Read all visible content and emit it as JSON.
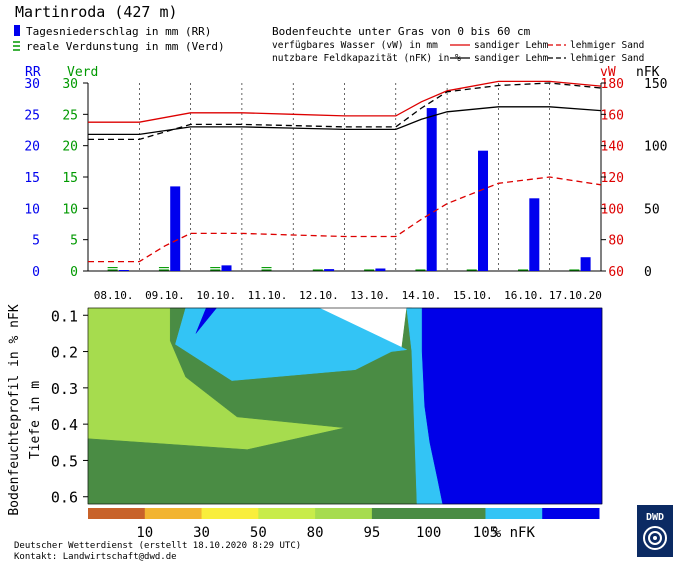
{
  "header": {
    "station": "Martinroda (427 m)",
    "legend_rr": "Tagesniederschlag in mm (RR)",
    "legend_verd": "reale Verdunstung in mm (Verd)",
    "soil_title": "Bodenfeuchte unter Gras von 0 bis 60 cm",
    "vw_label": "verfügbares Wasser (vW) in mm",
    "nfk_label": "nutzbare Feldkapazität (nFK) in %",
    "sandiger_lehm": "sandiger Lehm",
    "lehmiger_sand": "lehmiger Sand"
  },
  "footer": {
    "line1": "Deutscher Wetterdienst (erstellt 18.10.2020 8:29 UTC)",
    "line2": "Kontakt: Landwirtschaft@dwd.de",
    "logo_text": "DWD"
  },
  "colors": {
    "rr": "#0000ee",
    "verd": "#009900",
    "vw": "#dd0000",
    "nfk": "#000000"
  },
  "chart_data": [
    {
      "type": "bar",
      "title": "Tagesniederschlag / reale Verdunstung / Bodenfeuchte",
      "categories": [
        "08.10.",
        "09.10.",
        "10.10.",
        "11.10.",
        "12.10.",
        "13.10.",
        "14.10.",
        "15.10.",
        "16.10.",
        "17.10.20"
      ],
      "axes": {
        "rr": {
          "label": "RR",
          "ticks": [
            0,
            5,
            10,
            15,
            20,
            25,
            30
          ],
          "range": [
            0,
            30
          ]
        },
        "verd": {
          "label": "Verd",
          "ticks": [
            0,
            5,
            10,
            15,
            20,
            25,
            30
          ],
          "range": [
            0,
            30
          ]
        },
        "vw": {
          "label": "vW",
          "ticks": [
            60,
            80,
            100,
            120,
            140,
            160,
            180
          ],
          "range": [
            60,
            180
          ]
        },
        "nfk": {
          "label": "nFK",
          "ticks": [
            0,
            50,
            100,
            150
          ],
          "range": [
            0,
            150
          ]
        }
      },
      "series": [
        {
          "name": "Tagesniederschlag in mm (RR)",
          "kind": "bar",
          "axis": "rr",
          "values": [
            0.1,
            13.5,
            0.9,
            0,
            0.3,
            0.4,
            26,
            19.2,
            11.6,
            2.2
          ]
        },
        {
          "name": "reale Verdunstung in mm (Verd)",
          "kind": "bar-dashed",
          "axis": "verd",
          "values": [
            0.6,
            0.6,
            0.6,
            0.6,
            0.4,
            0.3,
            0.3,
            0.3,
            0.4,
            0.4
          ]
        },
        {
          "name": "vW sandiger Lehm",
          "kind": "line",
          "axis": "vw",
          "dash": "solid",
          "color": "#dd0000",
          "x": [
            0.0,
            1.0,
            2.0,
            3.0,
            4.0,
            5.0,
            6.0,
            6.5,
            7.0,
            8.0,
            9.0,
            10.0
          ],
          "values": [
            155,
            155,
            161,
            161,
            160,
            159,
            159,
            168,
            175,
            181,
            181,
            178
          ]
        },
        {
          "name": "vW lehmiger Sand",
          "kind": "line",
          "axis": "vw",
          "dash": "dashed",
          "color": "#dd0000",
          "x": [
            0.0,
            1.0,
            1.5,
            2.0,
            3.0,
            4.0,
            5.0,
            6.0,
            6.5,
            7.0,
            8.0,
            9.0,
            10.0
          ],
          "values": [
            66,
            66,
            76,
            84,
            84,
            83,
            82,
            82,
            93,
            103,
            116,
            120,
            115
          ]
        },
        {
          "name": "nFK sandiger Lehm",
          "kind": "line",
          "axis": "nfk",
          "dash": "solid",
          "color": "#000000",
          "x": [
            0.0,
            1.0,
            2.0,
            3.0,
            4.0,
            5.0,
            6.0,
            6.5,
            7.0,
            8.0,
            9.0,
            10.0
          ],
          "values": [
            109,
            109,
            115,
            115,
            114,
            113,
            113,
            121,
            127,
            131,
            131,
            128
          ]
        },
        {
          "name": "nFK lehmiger Sand",
          "kind": "line",
          "axis": "nfk",
          "dash": "dashed",
          "color": "#000000",
          "x": [
            0.0,
            1.0,
            2.0,
            3.0,
            4.0,
            5.0,
            6.0,
            6.5,
            7.0,
            8.0,
            9.0,
            10.0
          ],
          "values": [
            105,
            105,
            117,
            117,
            116,
            115,
            115,
            130,
            143,
            148,
            150,
            146
          ]
        }
      ]
    },
    {
      "type": "heatmap",
      "title": "Bodenfeuchteprofil in % nFK",
      "ylabel": "Bodenfeuchteprofil in % nFK",
      "ylabel2": "Tiefe in m",
      "yticks": [
        "0.1",
        "0.2",
        "0.3",
        "0.4",
        "0.5",
        "0.6"
      ],
      "yrange": [
        0.08,
        0.62
      ],
      "xrange": [
        0,
        10
      ],
      "zones": [
        {
          "label": "80-95 % nFK",
          "color": "#a6dc4e",
          "points": [
            [
              0,
              0.08
            ],
            [
              1.6,
              0.08
            ],
            [
              1.6,
              0.17
            ],
            [
              1.9,
              0.27
            ],
            [
              2.9,
              0.38
            ],
            [
              5,
              0.41
            ],
            [
              3.1,
              0.47
            ],
            [
              0,
              0.44
            ]
          ]
        },
        {
          "label": "95-100 % nFK",
          "color": "#4a8c44",
          "points": [
            [
              1.6,
              0.08
            ],
            [
              1.9,
              0.08
            ],
            [
              1.7,
              0.18
            ],
            [
              2.8,
              0.28
            ],
            [
              5.2,
              0.25
            ],
            [
              5.9,
              0.2
            ],
            [
              6.1,
              0.195
            ],
            [
              6.2,
              0.08
            ],
            [
              6.3,
              0.08
            ],
            [
              6.4,
              0.62
            ],
            [
              0,
              0.62
            ],
            [
              0,
              0.44
            ],
            [
              3.1,
              0.47
            ],
            [
              5,
              0.41
            ],
            [
              2.9,
              0.38
            ],
            [
              1.9,
              0.27
            ],
            [
              1.6,
              0.17
            ]
          ]
        },
        {
          "label": "100-105 % nFK",
          "color": "#33c4f5",
          "points": [
            [
              1.9,
              0.08
            ],
            [
              2.3,
              0.08
            ],
            [
              2.1,
              0.15
            ],
            [
              2.5,
              0.08
            ],
            [
              4.5,
              0.08
            ],
            [
              6.2,
              0.195
            ],
            [
              5.9,
              0.2
            ],
            [
              5.2,
              0.25
            ],
            [
              2.8,
              0.28
            ],
            [
              1.7,
              0.18
            ]
          ]
        },
        {
          "label": "100-105 % nFK",
          "color": "#33c4f5",
          "points": [
            [
              6.2,
              0.08
            ],
            [
              6.5,
              0.08
            ],
            [
              6.5,
              0.2
            ],
            [
              6.55,
              0.35
            ],
            [
              6.65,
              0.45
            ],
            [
              6.8,
              0.55
            ],
            [
              6.9,
              0.62
            ],
            [
              6.4,
              0.62
            ],
            [
              6.3,
              0.2
            ]
          ]
        },
        {
          "label": "> 105 % nFK",
          "color": "#0000e8",
          "points": [
            [
              2.1,
              0.15
            ],
            [
              2.3,
              0.08
            ],
            [
              2.5,
              0.08
            ]
          ]
        },
        {
          "label": "> 105 % nFK",
          "color": "#0000e8",
          "points": [
            [
              6.5,
              0.08
            ],
            [
              10,
              0.08
            ],
            [
              10,
              0.62
            ],
            [
              6.9,
              0.62
            ],
            [
              6.8,
              0.55
            ],
            [
              6.65,
              0.45
            ],
            [
              6.55,
              0.35
            ],
            [
              6.5,
              0.2
            ]
          ]
        }
      ],
      "colorbar": {
        "colors": [
          "#c8622a",
          "#f2b431",
          "#f9ee3c",
          "#c8ec4a",
          "#a6dc4e",
          "#4a8c44",
          "#4a8c44",
          "#33c4f5",
          "#0000e8"
        ],
        "ticks": [
          "10",
          "30",
          "50",
          "80",
          "95",
          "100",
          "105",
          "% nFK"
        ]
      }
    }
  ]
}
